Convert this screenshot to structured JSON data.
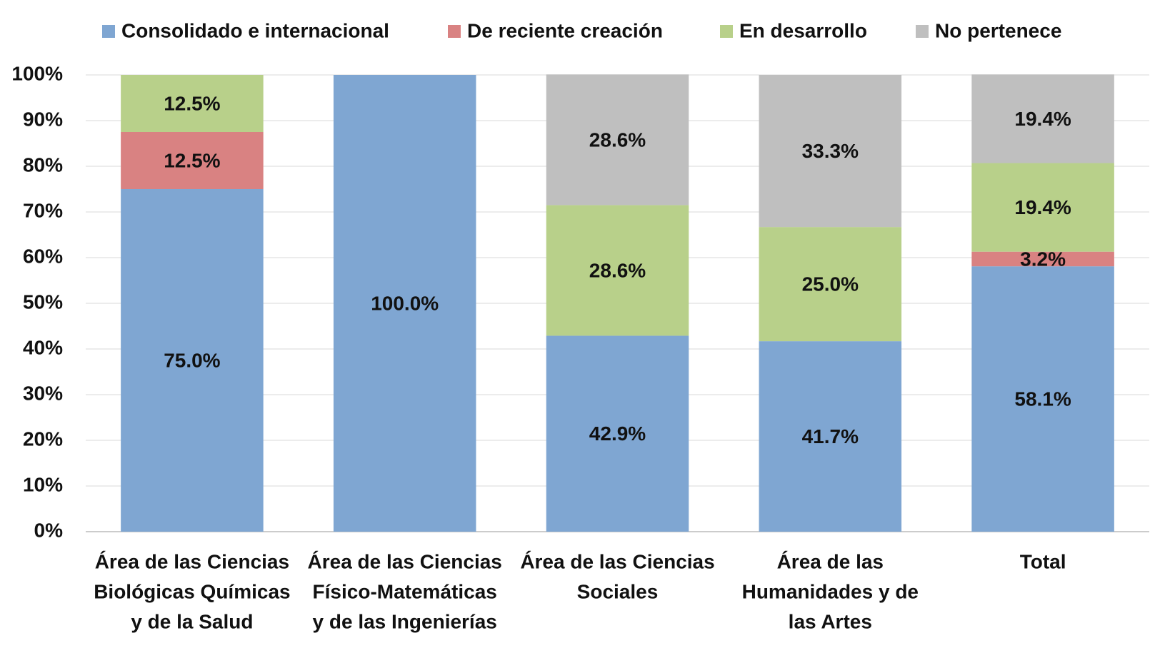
{
  "chart_data": {
    "type": "stacked_bar",
    "categories": [
      [
        "Área de las Ciencias",
        "Biológicas Químicas",
        "y de la Salud"
      ],
      [
        "Área de las Ciencias",
        "Físico-Matemáticas",
        "y de las Ingenierías"
      ],
      [
        "Área de las Ciencias",
        "Sociales"
      ],
      [
        "Área de las",
        "Humanidades y de",
        "las Artes"
      ],
      [
        "Total"
      ]
    ],
    "series": [
      {
        "name": "Consolidado e internacional",
        "color": "#7fa6d2",
        "values": [
          75.0,
          100.0,
          42.9,
          41.7,
          58.1
        ],
        "value_labels": [
          "75.0%",
          "100.0%",
          "42.9%",
          "41.7%",
          "58.1%"
        ]
      },
      {
        "name": "De reciente creación",
        "color": "#d98282",
        "values": [
          12.5,
          null,
          null,
          null,
          3.2
        ],
        "value_labels": [
          "12.5%",
          null,
          null,
          null,
          "3.2%"
        ]
      },
      {
        "name": "En desarrollo",
        "color": "#b8d08a",
        "values": [
          12.5,
          null,
          28.6,
          25.0,
          19.4
        ],
        "value_labels": [
          "12.5%",
          null,
          "28.6%",
          "25.0%",
          "19.4%"
        ]
      },
      {
        "name": "No pertenece",
        "color": "#bfbfbf",
        "values": [
          null,
          null,
          28.6,
          33.3,
          19.4
        ],
        "value_labels": [
          null,
          null,
          "28.6%",
          "33.3%",
          "19.4%"
        ]
      }
    ],
    "ylim": [
      0,
      100
    ],
    "yticks": [
      {
        "value": 0,
        "label": "0%"
      },
      {
        "value": 10,
        "label": "10%"
      },
      {
        "value": 20,
        "label": "20%"
      },
      {
        "value": 30,
        "label": "30%"
      },
      {
        "value": 40,
        "label": "40%"
      },
      {
        "value": 50,
        "label": "50%"
      },
      {
        "value": 60,
        "label": "60%"
      },
      {
        "value": 70,
        "label": "70%"
      },
      {
        "value": 80,
        "label": "80%"
      },
      {
        "value": 90,
        "label": "90%"
      },
      {
        "value": 100,
        "label": "100%"
      }
    ],
    "grid": true,
    "legend": "top"
  }
}
